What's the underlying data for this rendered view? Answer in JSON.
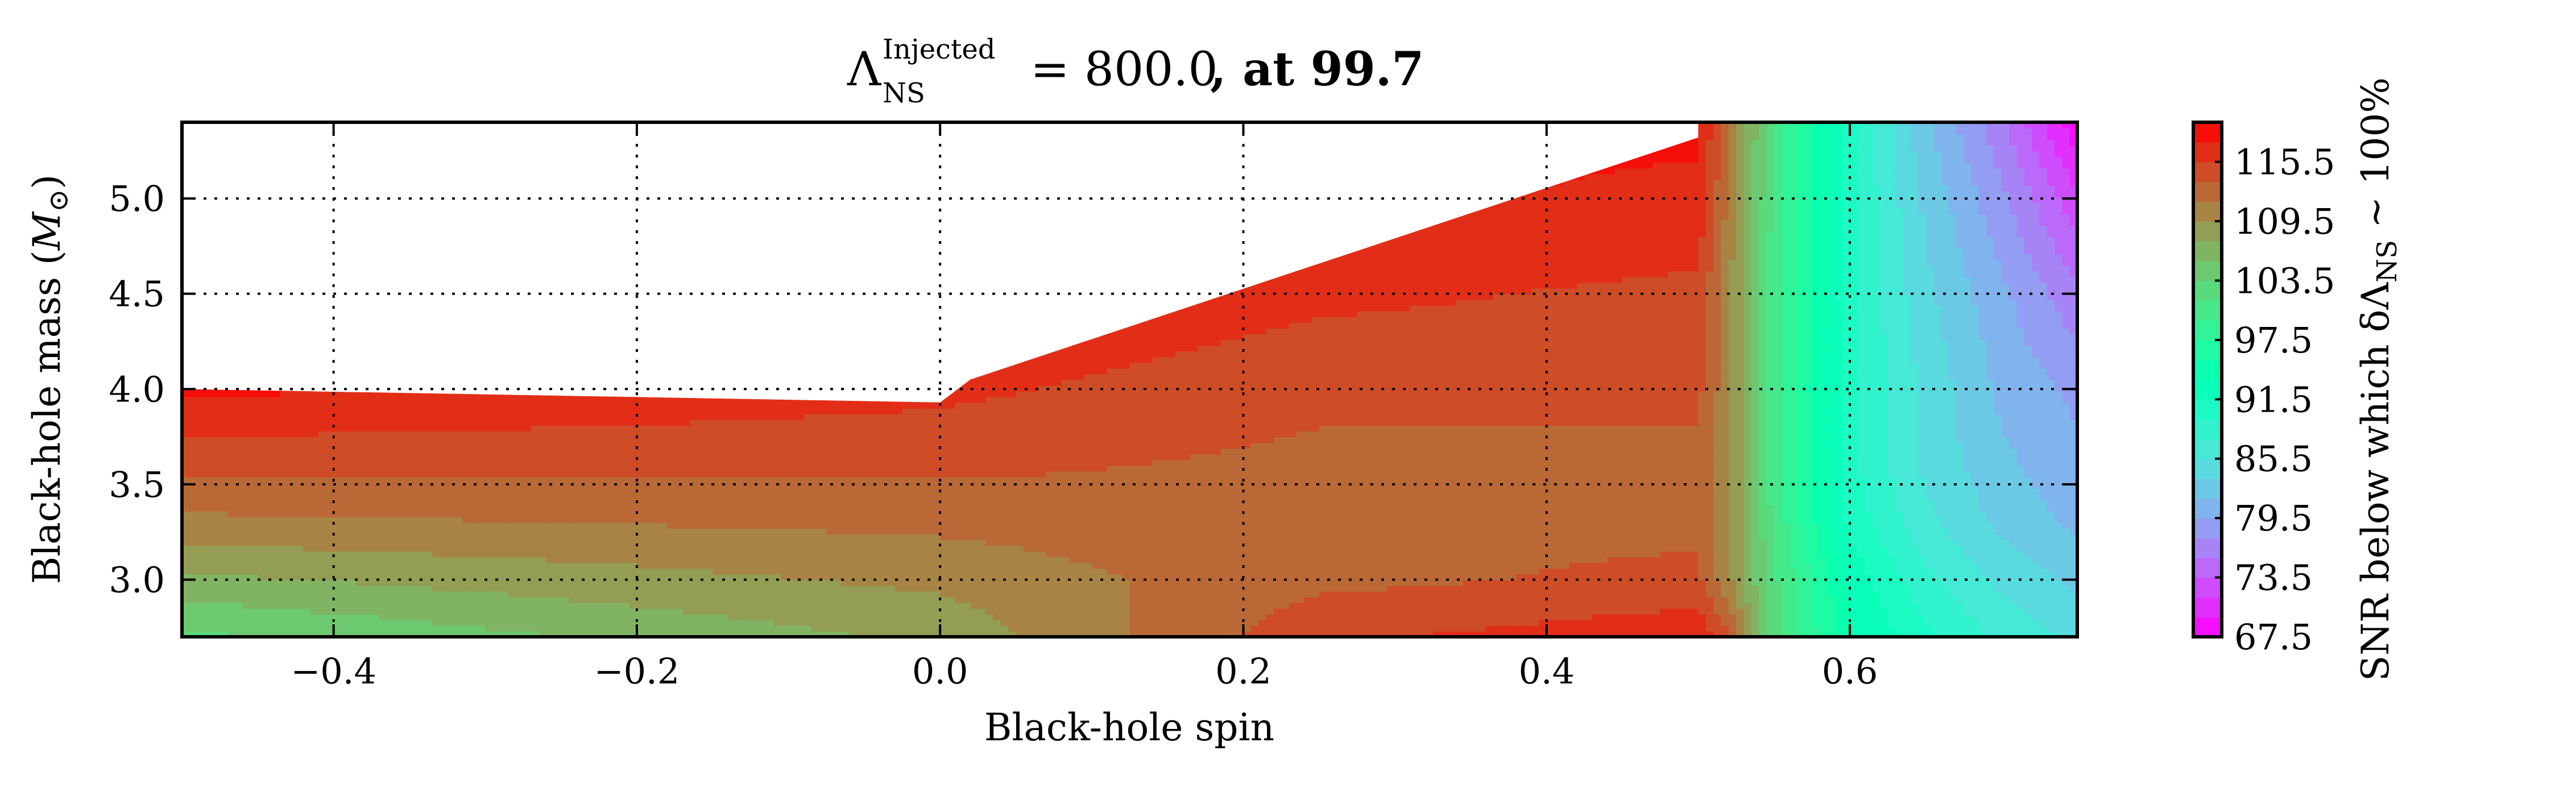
{
  "chart_data": {
    "type": "contourf",
    "title": {
      "lambda_symbol": "Λ",
      "superscript": "Injected",
      "subscript": "NS",
      "equals_value": "= 800.0",
      "suffix": ", at 99.7"
    },
    "xlabel": "Black-hole spin",
    "ylabel": {
      "text": "Black-hole mass (",
      "symbol": "M",
      "symbol_subscript": "⊙",
      "close": ")"
    },
    "xlim": [
      -0.5,
      0.75
    ],
    "ylim": [
      2.7,
      5.4
    ],
    "x_ticks": [
      "−0.4",
      "−0.2",
      "0.0",
      "0.2",
      "0.4",
      "0.6"
    ],
    "x_tick_values": [
      -0.4,
      -0.2,
      0.0,
      0.2,
      0.4,
      0.6
    ],
    "y_ticks": [
      "3.0",
      "3.5",
      "4.0",
      "4.5",
      "5.0"
    ],
    "y_tick_values": [
      3.0,
      3.5,
      4.0,
      4.5,
      5.0
    ],
    "grid": true,
    "colormap": "rainbow",
    "colorbar": {
      "label_text": "SNR below which δΛ",
      "label_subscript": "NS",
      "label_suffix": " ∼ 100%",
      "ticks": [
        "67.5",
        "73.5",
        "79.5",
        "85.5",
        "91.5",
        "97.5",
        "103.5",
        "109.5",
        "115.5"
      ],
      "tick_values": [
        67.5,
        73.5,
        79.5,
        85.5,
        91.5,
        97.5,
        103.5,
        109.5,
        115.5
      ],
      "range": [
        67.5,
        119.5
      ]
    },
    "upper_boundary": {
      "spin": [
        -0.5,
        0.0,
        0.02,
        0.5,
        0.5
      ],
      "mass": [
        4.0,
        3.93,
        4.05,
        5.32,
        5.4
      ]
    },
    "snr_grid": {
      "spin": [
        -0.5,
        0.0,
        0.25,
        0.5,
        0.52,
        0.55,
        0.6,
        0.65,
        0.7,
        0.75
      ],
      "mass": [
        2.7,
        3.0,
        3.3,
        3.6,
        4.0,
        4.5,
        5.0,
        5.4
      ],
      "snr": [
        [
          103,
          108,
          115,
          117,
          114,
          102,
          94,
          90,
          87,
          85
        ],
        [
          107,
          110,
          113,
          114,
          110,
          102,
          93,
          88,
          85,
          83
        ],
        [
          111,
          112,
          113,
          113,
          110,
          101,
          91,
          86,
          83,
          81
        ],
        [
          114,
          114,
          113,
          113,
          110,
          100,
          90,
          85,
          82,
          80
        ],
        [
          118,
          116,
          114,
          114,
          110,
          100,
          90,
          85,
          81,
          79
        ],
        [
          118,
          118,
          116,
          115,
          110,
          100,
          90,
          84,
          80,
          76
        ],
        [
          118,
          118,
          118,
          117,
          111,
          101,
          90,
          83,
          78,
          72
        ],
        [
          118,
          118,
          118,
          118,
          112,
          101,
          90,
          82,
          76,
          68
        ]
      ]
    }
  }
}
